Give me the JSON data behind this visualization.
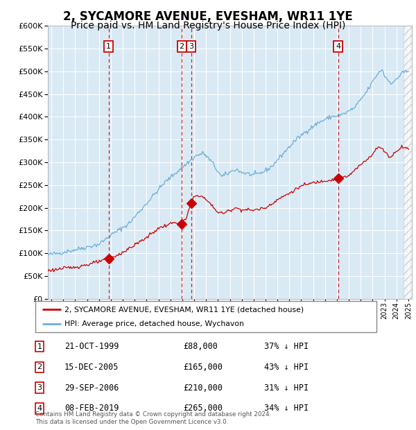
{
  "title": "2, SYCAMORE AVENUE, EVESHAM, WR11 1YE",
  "subtitle": "Price paid vs. HM Land Registry's House Price Index (HPI)",
  "ylim": [
    0,
    600000
  ],
  "yticks": [
    0,
    50000,
    100000,
    150000,
    200000,
    250000,
    300000,
    350000,
    400000,
    450000,
    500000,
    550000,
    600000
  ],
  "xlim_start": 1994.7,
  "xlim_end": 2025.3,
  "bg_color": "#daeaf5",
  "grid_color": "#ffffff",
  "red_line_color": "#cc0000",
  "blue_line_color": "#6baed6",
  "dashed_line_color": "#cc0000",
  "legend_label_red": "2, SYCAMORE AVENUE, EVESHAM, WR11 1YE (detached house)",
  "legend_label_blue": "HPI: Average price, detached house, Wychavon",
  "sales": [
    {
      "num": 1,
      "date_x": 1999.8,
      "price": 88000,
      "label": "21-OCT-1999",
      "pct": "37% ↓ HPI"
    },
    {
      "num": 2,
      "date_x": 2005.96,
      "price": 165000,
      "label": "15-DEC-2005",
      "pct": "43% ↓ HPI"
    },
    {
      "num": 3,
      "date_x": 2006.75,
      "price": 210000,
      "label": "29-SEP-2006",
      "pct": "31% ↓ HPI"
    },
    {
      "num": 4,
      "date_x": 2019.1,
      "price": 265000,
      "label": "08-FEB-2019",
      "pct": "34% ↓ HPI"
    }
  ],
  "footer": "Contains HM Land Registry data © Crown copyright and database right 2024.\nThis data is licensed under the Open Government Licence v3.0.",
  "title_fontsize": 12,
  "subtitle_fontsize": 10
}
